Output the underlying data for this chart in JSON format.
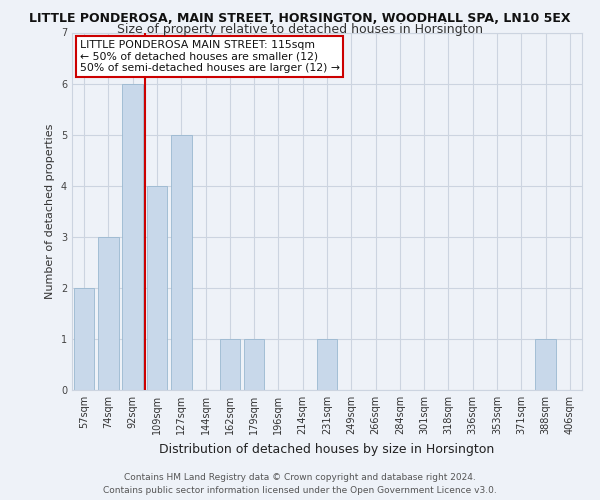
{
  "title": "LITTLE PONDEROSA, MAIN STREET, HORSINGTON, WOODHALL SPA, LN10 5EX",
  "subtitle": "Size of property relative to detached houses in Horsington",
  "xlabel": "Distribution of detached houses by size in Horsington",
  "ylabel": "Number of detached properties",
  "categories": [
    "57sqm",
    "74sqm",
    "92sqm",
    "109sqm",
    "127sqm",
    "144sqm",
    "162sqm",
    "179sqm",
    "196sqm",
    "214sqm",
    "231sqm",
    "249sqm",
    "266sqm",
    "284sqm",
    "301sqm",
    "318sqm",
    "336sqm",
    "353sqm",
    "371sqm",
    "388sqm",
    "406sqm"
  ],
  "values": [
    2,
    3,
    6,
    4,
    5,
    0,
    1,
    1,
    0,
    0,
    1,
    0,
    0,
    0,
    0,
    0,
    0,
    0,
    0,
    1,
    0
  ],
  "bar_color": "#c8d8ea",
  "bar_edgecolor": "#9ab8d0",
  "vline_x": 2.5,
  "vline_color": "#cc0000",
  "ylim": [
    0,
    7
  ],
  "yticks": [
    0,
    1,
    2,
    3,
    4,
    5,
    6,
    7
  ],
  "annotation_title": "LITTLE PONDEROSA MAIN STREET: 115sqm",
  "annotation_line1": "← 50% of detached houses are smaller (12)",
  "annotation_line2": "50% of semi-detached houses are larger (12) →",
  "annotation_box_facecolor": "#ffffff",
  "annotation_box_edgecolor": "#cc0000",
  "footer_line1": "Contains HM Land Registry data © Crown copyright and database right 2024.",
  "footer_line2": "Contains public sector information licensed under the Open Government Licence v3.0.",
  "background_color": "#eef2f8",
  "grid_color": "#ccd4e0",
  "title_fontsize": 9,
  "subtitle_fontsize": 9,
  "ylabel_fontsize": 8,
  "xlabel_fontsize": 9,
  "tick_fontsize": 7,
  "footer_fontsize": 6.5,
  "ann_fontsize": 7.8
}
